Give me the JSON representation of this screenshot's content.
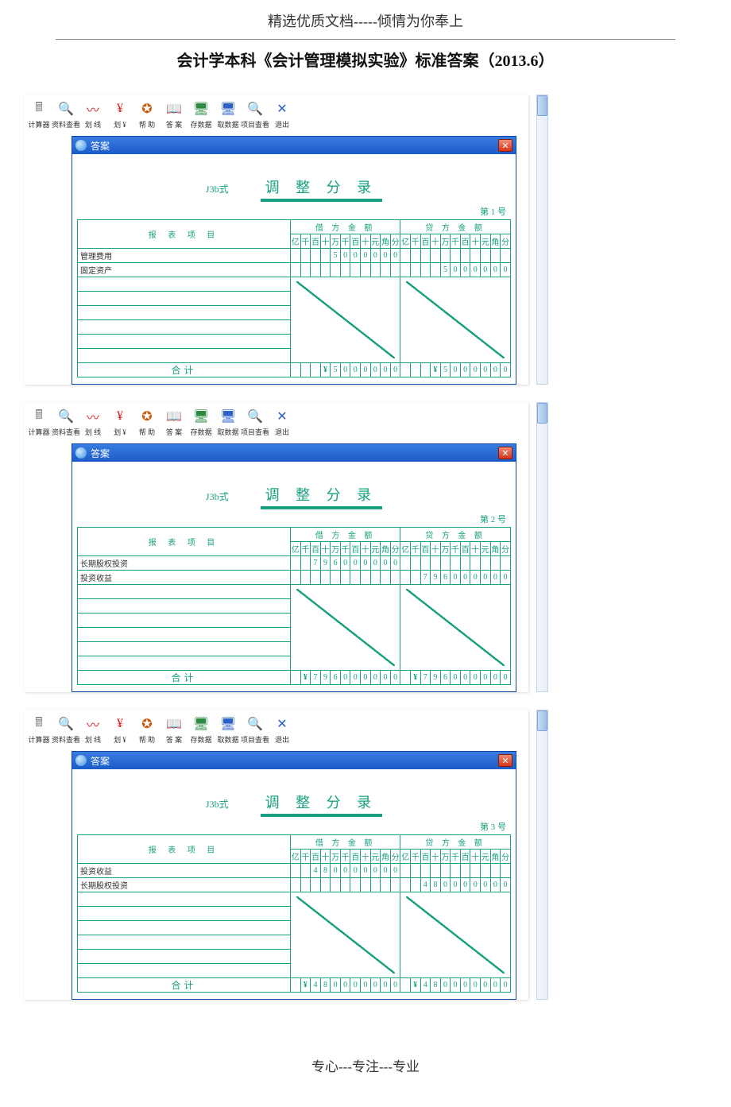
{
  "doc": {
    "header": "精选优质文档-----倾情为你奉上",
    "title": "会计学本科《会计管理模拟实验》标准答案（2013.6）",
    "footer": "专心---专注---专业"
  },
  "toolbar": [
    {
      "name": "calculator-icon",
      "glyph": "🖩",
      "color": "#888",
      "label": "计算器"
    },
    {
      "name": "search-icon",
      "glyph": "🔍",
      "color": "#b07018",
      "label": "资料查看"
    },
    {
      "name": "red-line-icon",
      "glyph": "〰",
      "color": "#d62020",
      "label": "划 线"
    },
    {
      "name": "yen-icon",
      "glyph": "¥",
      "color": "#d62020",
      "label": "划 ¥"
    },
    {
      "name": "help-icon",
      "glyph": "✪",
      "color": "#c95b10",
      "label": "帮 助"
    },
    {
      "name": "answer-icon",
      "glyph": "📖",
      "color": "#c9a020",
      "label": "答 案"
    },
    {
      "name": "save-icon",
      "glyph": "🖥",
      "color": "#2a8a40",
      "label": "存数据"
    },
    {
      "name": "load-icon",
      "glyph": "🖥",
      "color": "#2a60c8",
      "label": "取数据"
    },
    {
      "name": "view-icon",
      "glyph": "🔍",
      "color": "#b07018",
      "label": "项目查看"
    },
    {
      "name": "exit-icon",
      "glyph": "✕",
      "color": "#2a60c8",
      "label": "退出"
    }
  ],
  "window": {
    "title": "答案",
    "close": "✕"
  },
  "voucher": {
    "form_code": "J3b式",
    "title": "调 整 分 录",
    "colhead_project": "报 表 项 目",
    "colhead_debit": "借 方 金 额",
    "colhead_credit": "贷 方 金 额",
    "units": [
      "亿",
      "千",
      "百",
      "十",
      "万",
      "千",
      "百",
      "十",
      "元",
      "角",
      "分"
    ],
    "total_label": "合计",
    "yen": "¥"
  },
  "entries": [
    {
      "page_label": "第 1 号",
      "rows": [
        {
          "name": "管理费用",
          "debit": [
            "",
            "",
            "",
            "5",
            "0",
            "0",
            "0",
            "0",
            "0",
            "0"
          ],
          "credit": []
        },
        {
          "name": "固定资产",
          "debit": [],
          "credit": [
            "",
            "",
            "",
            "5",
            "0",
            "0",
            "0",
            "0",
            "0",
            "0"
          ]
        }
      ],
      "total_debit": [
        "",
        "",
        "",
        "5",
        "0",
        "0",
        "0",
        "0",
        "0",
        "0"
      ],
      "total_credit": [
        "",
        "",
        "",
        "5",
        "0",
        "0",
        "0",
        "0",
        "0",
        "0"
      ]
    },
    {
      "page_label": "第 2 号",
      "rows": [
        {
          "name": "长期股权投资",
          "debit": [
            "",
            "7",
            "9",
            "6",
            "0",
            "0",
            "0",
            "0",
            "0",
            "0"
          ],
          "credit": []
        },
        {
          "name": "投资收益",
          "debit": [],
          "credit": [
            "",
            "7",
            "9",
            "6",
            "0",
            "0",
            "0",
            "0",
            "0",
            "0"
          ]
        }
      ],
      "total_debit": [
        "",
        "7",
        "9",
        "6",
        "0",
        "0",
        "0",
        "0",
        "0",
        "0"
      ],
      "total_credit": [
        "",
        "7",
        "9",
        "6",
        "0",
        "0",
        "0",
        "0",
        "0",
        "0"
      ]
    },
    {
      "page_label": "第 3 号",
      "rows": [
        {
          "name": "投资收益",
          "debit": [
            "",
            "4",
            "8",
            "0",
            "0",
            "0",
            "0",
            "0",
            "0",
            "0"
          ],
          "credit": []
        },
        {
          "name": "长期股权投资",
          "debit": [],
          "credit": [
            "",
            "4",
            "8",
            "0",
            "0",
            "0",
            "0",
            "0",
            "0",
            "0"
          ]
        }
      ],
      "total_debit": [
        "",
        "4",
        "8",
        "0",
        "0",
        "0",
        "0",
        "0",
        "0",
        "0"
      ],
      "total_credit": [
        "",
        "4",
        "8",
        "0",
        "0",
        "0",
        "0",
        "0",
        "0",
        "0"
      ]
    }
  ]
}
